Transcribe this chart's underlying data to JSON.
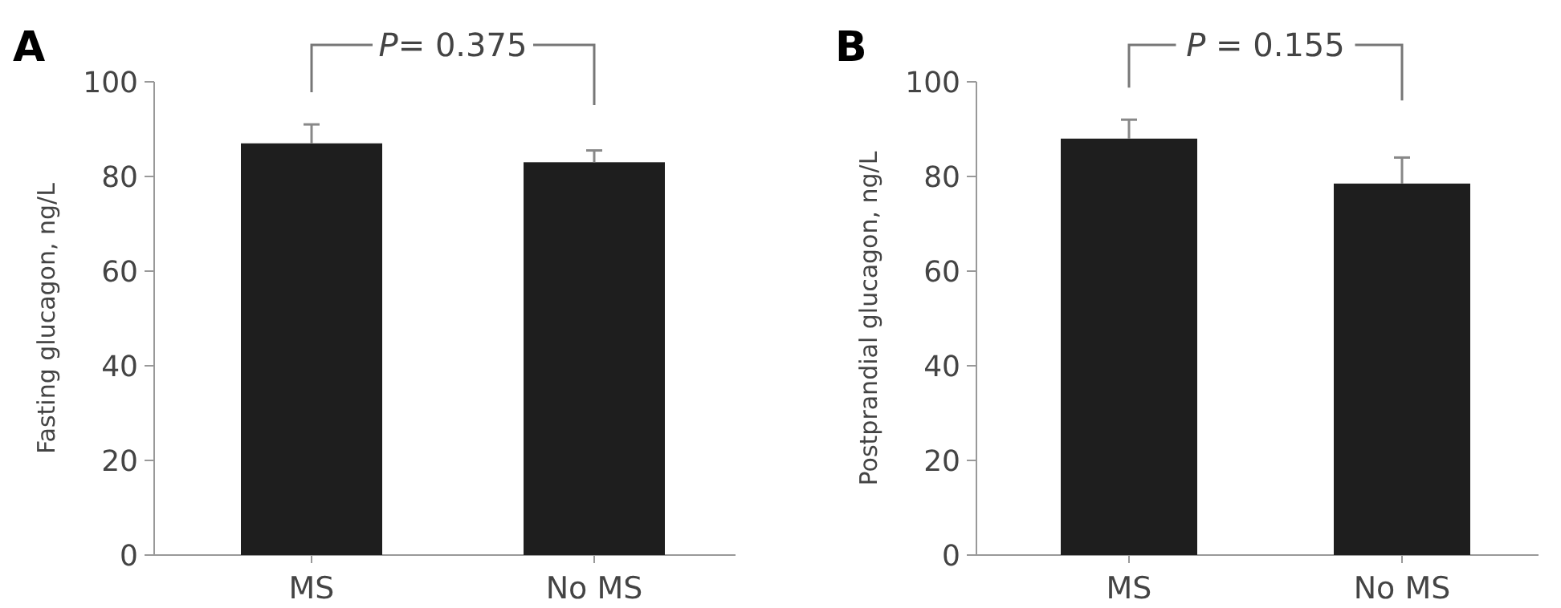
{
  "chart_data": [
    {
      "type": "bar",
      "title": "A",
      "ylabel": "Fasting glucagon, ng/L",
      "categories": [
        "MS",
        "No MS"
      ],
      "values": [
        87,
        83
      ],
      "errors": [
        [
          87,
          91
        ],
        [
          83,
          85.5
        ]
      ],
      "color": "#1e1e1e",
      "ylim": [
        0,
        100
      ],
      "yticks": [
        0,
        20,
        40,
        60,
        80,
        100
      ],
      "annotations": [
        "P= 0.375"
      ]
    },
    {
      "type": "bar",
      "title": "B",
      "ylabel": "Postprandial glucagon, ng/L",
      "categories": [
        "MS",
        "No MS"
      ],
      "values": [
        88,
        78.5
      ],
      "errors": [
        [
          88,
          92
        ],
        [
          78.5,
          84
        ]
      ],
      "color": "#1e1e1e",
      "ylim": [
        0,
        100
      ],
      "yticks": [
        0,
        20,
        40,
        60,
        80,
        100
      ],
      "annotations": [
        "P = 0.155"
      ]
    }
  ]
}
